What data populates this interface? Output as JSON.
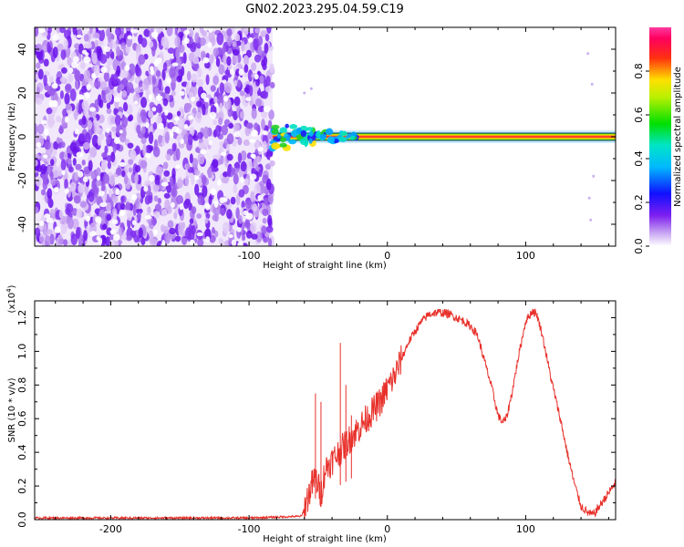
{
  "title": "GN02.2023.295.04.59.C19",
  "chart_data": [
    {
      "type": "heatmap",
      "description_of_data": "spectrogram",
      "xlabel": "Height of straight line (km)",
      "ylabel": "Frequency (Hz)",
      "xlim": [
        -255,
        165
      ],
      "ylim": [
        -50,
        50
      ],
      "x_ticks": [
        -200,
        -100,
        0,
        100
      ],
      "x_tick_labels": [
        "-200",
        "-100",
        "0",
        "100"
      ],
      "y_ticks": [
        -40,
        -20,
        0,
        20,
        40
      ],
      "y_tick_labels": [
        "-40",
        "-20",
        "0",
        "20",
        "40"
      ],
      "noise_region_x": [
        -255,
        -83
      ],
      "carrier_start_x": -83,
      "carrier_frequency": 0,
      "colorbar": {
        "label": "Normalized spectral amplitude",
        "range": [
          0.0,
          1.0
        ],
        "ticks": [
          0.0,
          0.2,
          0.4,
          0.6,
          0.8
        ],
        "tick_labels": [
          "0.0",
          "0.2",
          "0.4",
          "0.6",
          "0.8"
        ],
        "colormap": "rainbow (white-violet-blue-cyan-green-yellow-red-magenta)"
      }
    },
    {
      "type": "line",
      "xlabel": "Height of straight line (km)",
      "ylabel": "SNR (10 * v/v)",
      "y_multiplier": "(x10",
      "y_multiplier_exp": "4",
      "xlim": [
        -255,
        165
      ],
      "ylim": [
        0,
        1.3
      ],
      "x_ticks": [
        -200,
        -100,
        0,
        100
      ],
      "x_tick_labels": [
        "-200",
        "-100",
        "0",
        "100"
      ],
      "y_ticks": [
        0.0,
        0.2,
        0.4,
        0.6,
        0.8,
        1.0,
        1.2
      ],
      "y_tick_labels": [
        "0.0",
        "0.2",
        "0.4",
        "0.6",
        "0.8",
        "1.0",
        "1.2"
      ],
      "series": [
        {
          "color": "#e8302a",
          "x": [
            -255,
            -100,
            -62,
            -58,
            -55,
            -52,
            -48,
            -45,
            -40,
            -35,
            -30,
            -25,
            -20,
            -15,
            -10,
            -5,
            0,
            5,
            10,
            15,
            20,
            25,
            30,
            35,
            40,
            45,
            50,
            55,
            60,
            65,
            70,
            75,
            80,
            83,
            86,
            90,
            95,
            100,
            105,
            108,
            112,
            118,
            125,
            130,
            135,
            140,
            145,
            148,
            150,
            155,
            160,
            165
          ],
          "y": [
            0.01,
            0.01,
            0.02,
            0.12,
            0.2,
            0.25,
            0.15,
            0.3,
            0.35,
            0.4,
            0.45,
            0.5,
            0.55,
            0.6,
            0.65,
            0.7,
            0.78,
            0.85,
            0.95,
            1.05,
            1.12,
            1.18,
            1.22,
            1.23,
            1.23,
            1.22,
            1.2,
            1.18,
            1.15,
            1.1,
            0.95,
            0.8,
            0.62,
            0.58,
            0.6,
            0.75,
            0.98,
            1.18,
            1.24,
            1.22,
            1.1,
            0.85,
            0.6,
            0.4,
            0.22,
            0.08,
            0.04,
            0.03,
            0.04,
            0.1,
            0.16,
            0.22
          ]
        }
      ],
      "spikes": [
        {
          "x": -52,
          "y": 0.75
        },
        {
          "x": -48,
          "y": 0.7
        },
        {
          "x": -34,
          "y": 1.05
        },
        {
          "x": -30,
          "y": 0.8
        },
        {
          "x": -26,
          "y": 0.62
        }
      ]
    }
  ]
}
